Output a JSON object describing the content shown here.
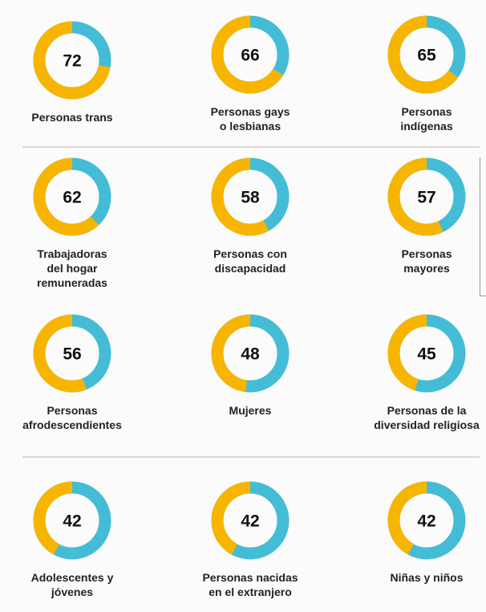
{
  "chart_data": [
    {
      "type": "donut",
      "title": [
        "Personas trans"
      ],
      "value": 72,
      "colors": [
        "#f7b500",
        "#45bcd6"
      ]
    },
    {
      "type": "donut",
      "title": [
        "Personas gays",
        "o lesbianas"
      ],
      "value": 66,
      "colors": [
        "#f7b500",
        "#45bcd6"
      ]
    },
    {
      "type": "donut",
      "title": [
        "Personas",
        "indígenas"
      ],
      "value": 65,
      "colors": [
        "#f7b500",
        "#45bcd6"
      ]
    },
    {
      "type": "donut",
      "title": [
        "Trabajadoras",
        "del hogar",
        "remuneradas"
      ],
      "value": 62,
      "colors": [
        "#f7b500",
        "#45bcd6"
      ]
    },
    {
      "type": "donut",
      "title": [
        "Personas con",
        "discapacidad"
      ],
      "value": 58,
      "colors": [
        "#f7b500",
        "#45bcd6"
      ]
    },
    {
      "type": "donut",
      "title": [
        "Personas",
        "mayores"
      ],
      "value": 57,
      "colors": [
        "#f7b500",
        "#45bcd6"
      ]
    },
    {
      "type": "donut",
      "title": [
        "Personas",
        "afrodescendientes"
      ],
      "value": 56,
      "colors": [
        "#f7b500",
        "#45bcd6"
      ]
    },
    {
      "type": "donut",
      "title": [
        "Mujeres"
      ],
      "value": 48,
      "colors": [
        "#f7b500",
        "#45bcd6"
      ]
    },
    {
      "type": "donut",
      "title": [
        "Personas de la",
        "diversidad religiosa"
      ],
      "value": 45,
      "colors": [
        "#f7b500",
        "#45bcd6"
      ]
    },
    {
      "type": "donut",
      "title": [
        "Adolescentes y",
        "jóvenes"
      ],
      "value": 42,
      "colors": [
        "#f7b500",
        "#45bcd6"
      ]
    },
    {
      "type": "donut",
      "title": [
        "Personas nacidas",
        "en el extranjero"
      ],
      "value": 42,
      "colors": [
        "#f7b500",
        "#45bcd6"
      ]
    },
    {
      "type": "donut",
      "title": [
        "Niñas y niños"
      ],
      "value": 42,
      "colors": [
        "#f7b500",
        "#45bcd6"
      ]
    }
  ]
}
